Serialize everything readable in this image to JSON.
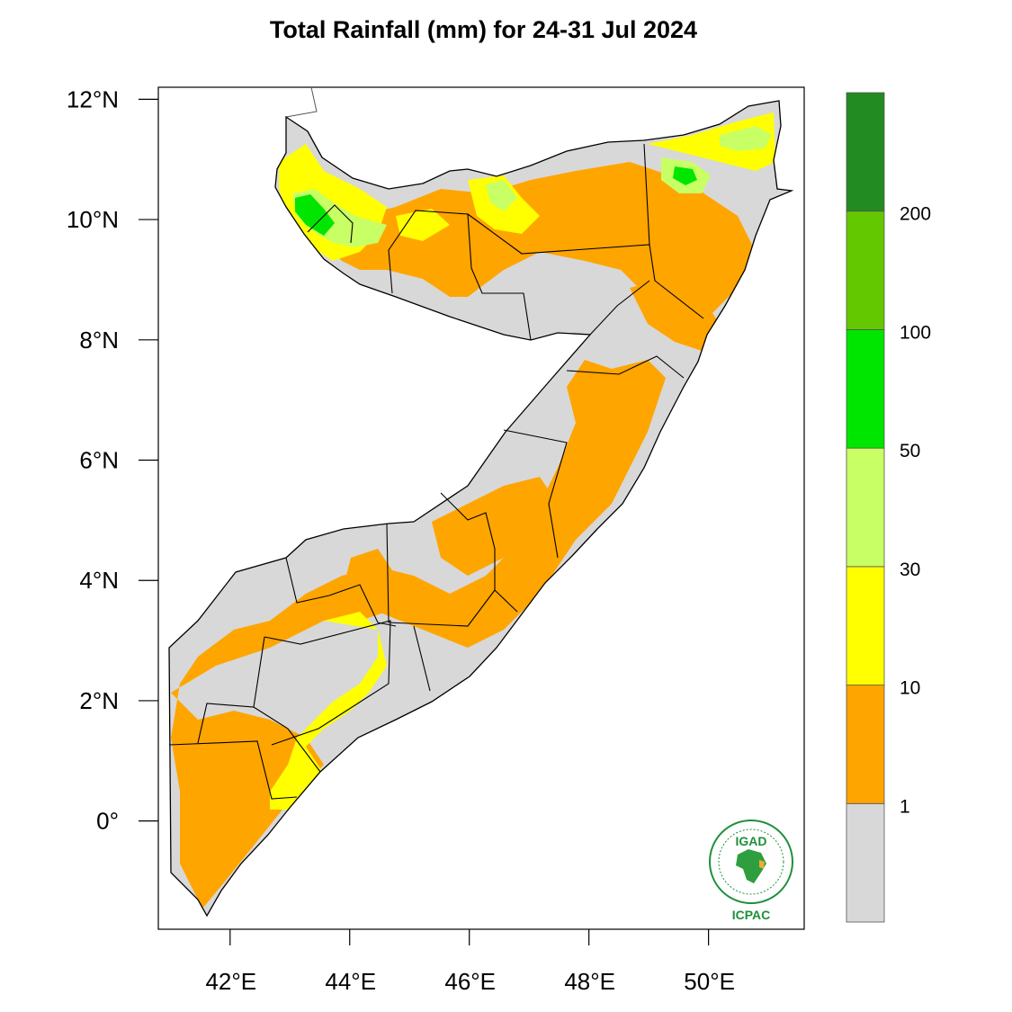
{
  "title": "Total Rainfall (mm) for 24-31 Jul 2024",
  "map": {
    "region": "Somalia",
    "lon_range": [
      40.8,
      51.6
    ],
    "lat_range": [
      -1.8,
      12.2
    ],
    "x_ticks": [
      {
        "value": 42,
        "label": "42°E"
      },
      {
        "value": 44,
        "label": "44°E"
      },
      {
        "value": 46,
        "label": "46°E"
      },
      {
        "value": 48,
        "label": "48°E"
      },
      {
        "value": 50,
        "label": "50°E"
      }
    ],
    "y_ticks": [
      {
        "value": 12,
        "label": "12°N"
      },
      {
        "value": 10,
        "label": "10°N"
      },
      {
        "value": 8,
        "label": "8°N"
      },
      {
        "value": 6,
        "label": "6°N"
      },
      {
        "value": 4,
        "label": "4°N"
      },
      {
        "value": 2,
        "label": "2°N"
      },
      {
        "value": 0,
        "label": "0°"
      }
    ]
  },
  "colorbar": {
    "bins": [
      {
        "color": "#d8d8d8",
        "range": "<1"
      },
      {
        "color": "#ffa500",
        "range": "1-10"
      },
      {
        "color": "#ffff00",
        "range": "10-30"
      },
      {
        "color": "#c8ff64",
        "range": "30-50"
      },
      {
        "color": "#00e600",
        "range": "50-100"
      },
      {
        "color": "#64c800",
        "range": "100-200"
      },
      {
        "color": "#228b22",
        "range": ">200"
      }
    ],
    "labels": [
      "1",
      "10",
      "30",
      "50",
      "100",
      "200"
    ]
  },
  "logo": {
    "top_text": "IGAD",
    "bottom_text": "ICPAC"
  }
}
